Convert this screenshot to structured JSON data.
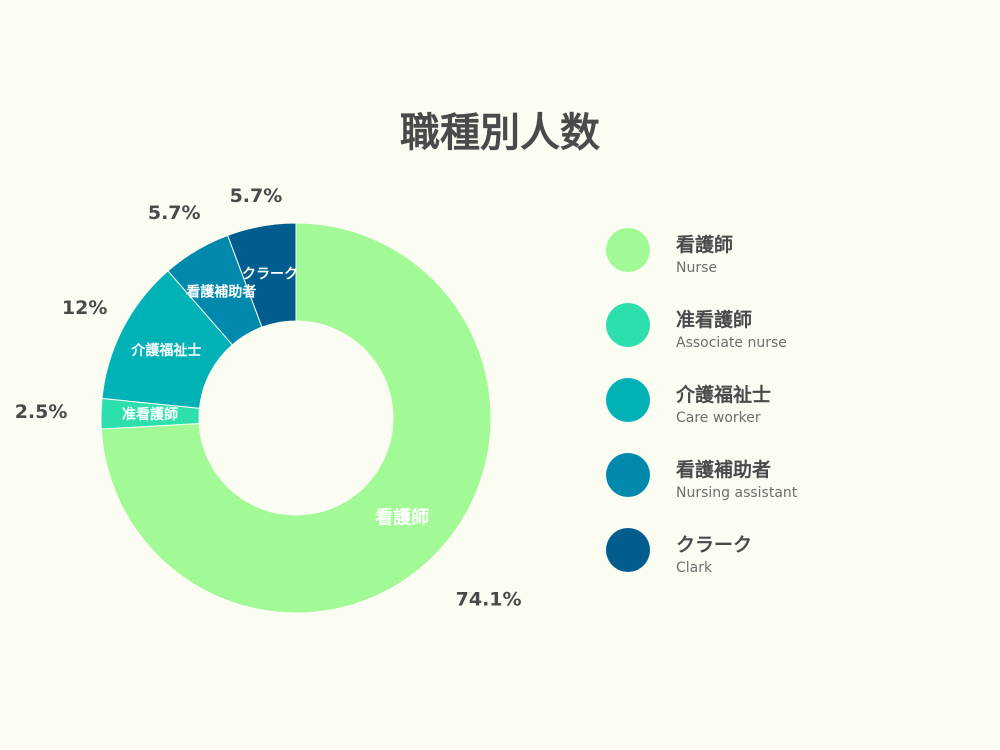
{
  "chart_data": {
    "type": "pie",
    "title": "職種別人数",
    "categories": [
      "看護師",
      "准看護師",
      "介護福祉士",
      "看護補助者",
      "クラーク"
    ],
    "categories_en": [
      "Nurse",
      "Associate nurse",
      "Care worker",
      "Nursing assistant",
      "Clark"
    ],
    "values": [
      74.1,
      2.5,
      12,
      5.7,
      5.7
    ],
    "value_labels": [
      "74.1%",
      "2.5%",
      "12%",
      "5.7%",
      "5.7%"
    ],
    "colors": [
      "#a1fa96",
      "#2ddfad",
      "#00b2b5",
      "#0089ac",
      "#005d8e"
    ],
    "donut": true,
    "legend_position": "right"
  }
}
